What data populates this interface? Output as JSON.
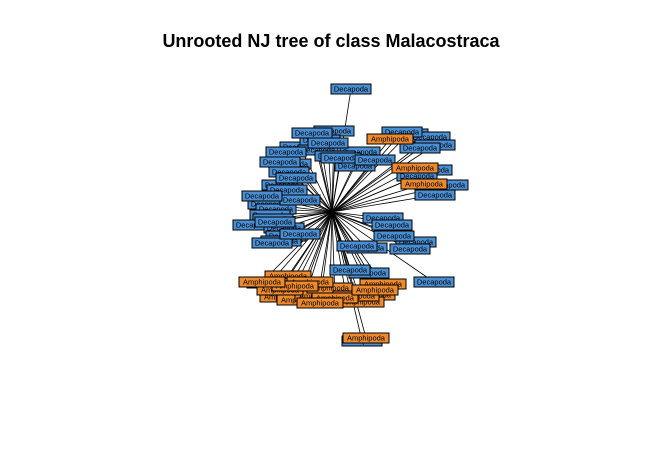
{
  "title": "Unrooted NJ tree of class Malacostraca",
  "legend_colors": {
    "Decapoda": "#4a8fd4",
    "Amphipoda": "#ee8a2e"
  },
  "tip_groups": [
    {
      "order": "Decapoda",
      "count": 52
    },
    {
      "order": "Amphipoda",
      "count": 23
    }
  ]
}
